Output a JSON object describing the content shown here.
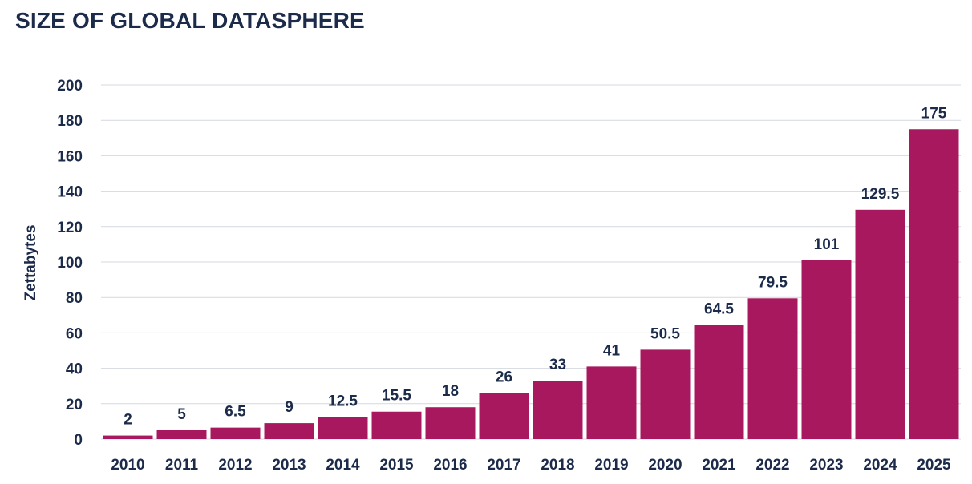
{
  "chart_data": {
    "type": "bar",
    "title": "SIZE OF GLOBAL DATASPHERE",
    "xlabel": "",
    "ylabel": "Zettabytes",
    "ylim": [
      0,
      200
    ],
    "yticks": [
      0,
      20,
      40,
      60,
      80,
      100,
      120,
      140,
      160,
      180,
      200
    ],
    "grid": true,
    "legend": "none",
    "bar_color": "#a8185f",
    "text_color": "#1c2b4a",
    "categories": [
      "2010",
      "2011",
      "2012",
      "2013",
      "2014",
      "2015",
      "2016",
      "2017",
      "2018",
      "2019",
      "2020",
      "2021",
      "2022",
      "2023",
      "2024",
      "2025"
    ],
    "values": [
      2,
      5,
      6.5,
      9,
      12.5,
      15.5,
      18,
      26,
      33,
      41,
      50.5,
      64.5,
      79.5,
      101,
      129.5,
      175
    ]
  }
}
